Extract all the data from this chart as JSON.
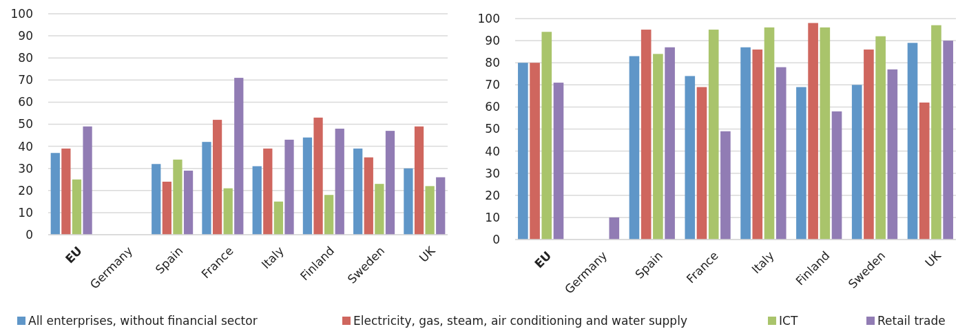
{
  "chart_data": [
    {
      "type": "bar",
      "categories": [
        "EU",
        "Germany",
        "Spain",
        "France",
        "Italy",
        "Finland",
        "Sweden",
        "UK"
      ],
      "ylim": [
        0,
        100
      ],
      "yticks": [
        0,
        10,
        20,
        30,
        40,
        50,
        60,
        70,
        80,
        90,
        100
      ],
      "grid": "y",
      "legend": "bottom",
      "series": [
        {
          "name": "All enterprises, without financial sector",
          "color": "#5f96c8",
          "values": [
            37,
            null,
            32,
            42,
            31,
            44,
            39,
            30
          ]
        },
        {
          "name": "Electricity, gas, steam, air conditioning and water supply",
          "color": "#cf665e",
          "values": [
            39,
            null,
            24,
            52,
            39,
            53,
            35,
            49
          ]
        },
        {
          "name": "ICT",
          "color": "#a9c46b",
          "values": [
            25,
            null,
            34,
            21,
            15,
            18,
            23,
            22
          ]
        },
        {
          "name": "Retail trade",
          "color": "#917cb4",
          "values": [
            49,
            null,
            29,
            71,
            43,
            48,
            47,
            26
          ]
        }
      ]
    },
    {
      "type": "bar",
      "categories": [
        "EU",
        "Germany",
        "Spain",
        "France",
        "Italy",
        "Finland",
        "Sweden",
        "UK"
      ],
      "ylim": [
        0,
        100
      ],
      "yticks": [
        0,
        10,
        20,
        30,
        40,
        50,
        60,
        70,
        80,
        90,
        100
      ],
      "grid": "y",
      "series": [
        {
          "color": "#5f96c8",
          "values": [
            80,
            null,
            83,
            74,
            87,
            69,
            70,
            89
          ]
        },
        {
          "color": "#cf665e",
          "values": [
            80,
            null,
            95,
            69,
            86,
            98,
            86,
            62
          ]
        },
        {
          "color": "#a9c46b",
          "values": [
            94,
            null,
            84,
            95,
            96,
            96,
            92,
            97
          ]
        },
        {
          "color": "#917cb4",
          "values": [
            71,
            10,
            87,
            49,
            78,
            58,
            77,
            90
          ]
        }
      ]
    }
  ]
}
